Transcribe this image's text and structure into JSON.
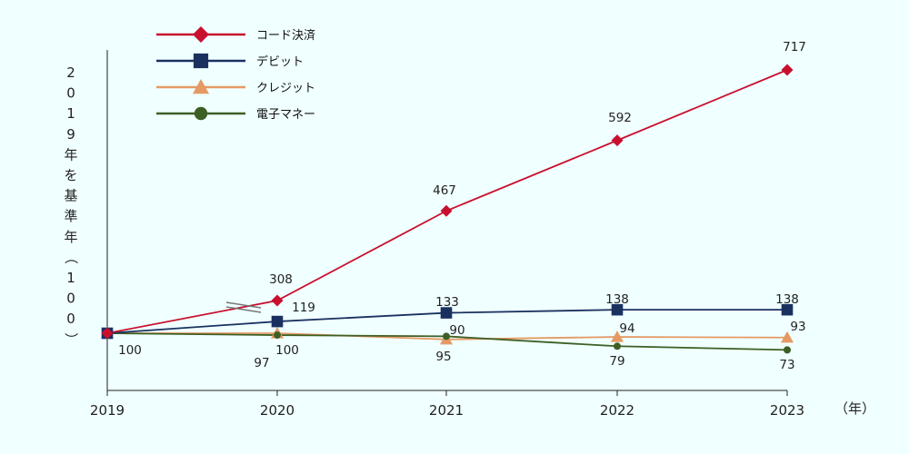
{
  "chart_data": {
    "type": "line",
    "title": "",
    "xlabel": "（年）",
    "ylabel": "2019年を基準年（100）",
    "x": [
      "2019",
      "2020",
      "2021",
      "2022",
      "2023"
    ],
    "series": [
      {
        "name": "コード決済",
        "color": "#c8102e",
        "marker": "diamond",
        "values": [
          100,
          308,
          467,
          592,
          717
        ],
        "labels": [
          "",
          "308",
          "467",
          "592",
          "717"
        ]
      },
      {
        "name": "デビット",
        "color": "#1a3160",
        "marker": "square",
        "values": [
          100,
          119,
          133,
          138,
          138
        ],
        "labels": [
          "100",
          "119",
          "133",
          "138",
          "138"
        ]
      },
      {
        "name": "クレジット",
        "color": "#e59a64",
        "marker": "triangle",
        "values": [
          100,
          100,
          90,
          94,
          93
        ],
        "labels": [
          "",
          "100",
          "90",
          "94",
          "93"
        ]
      },
      {
        "name": "電子マネー",
        "color": "#3d5f24",
        "marker": "circle",
        "values": [
          100,
          97,
          95,
          79,
          73
        ],
        "labels": [
          "",
          "97",
          "95",
          "79",
          "73"
        ]
      }
    ],
    "axis_break": true,
    "grid": false,
    "legend": "top-left"
  }
}
